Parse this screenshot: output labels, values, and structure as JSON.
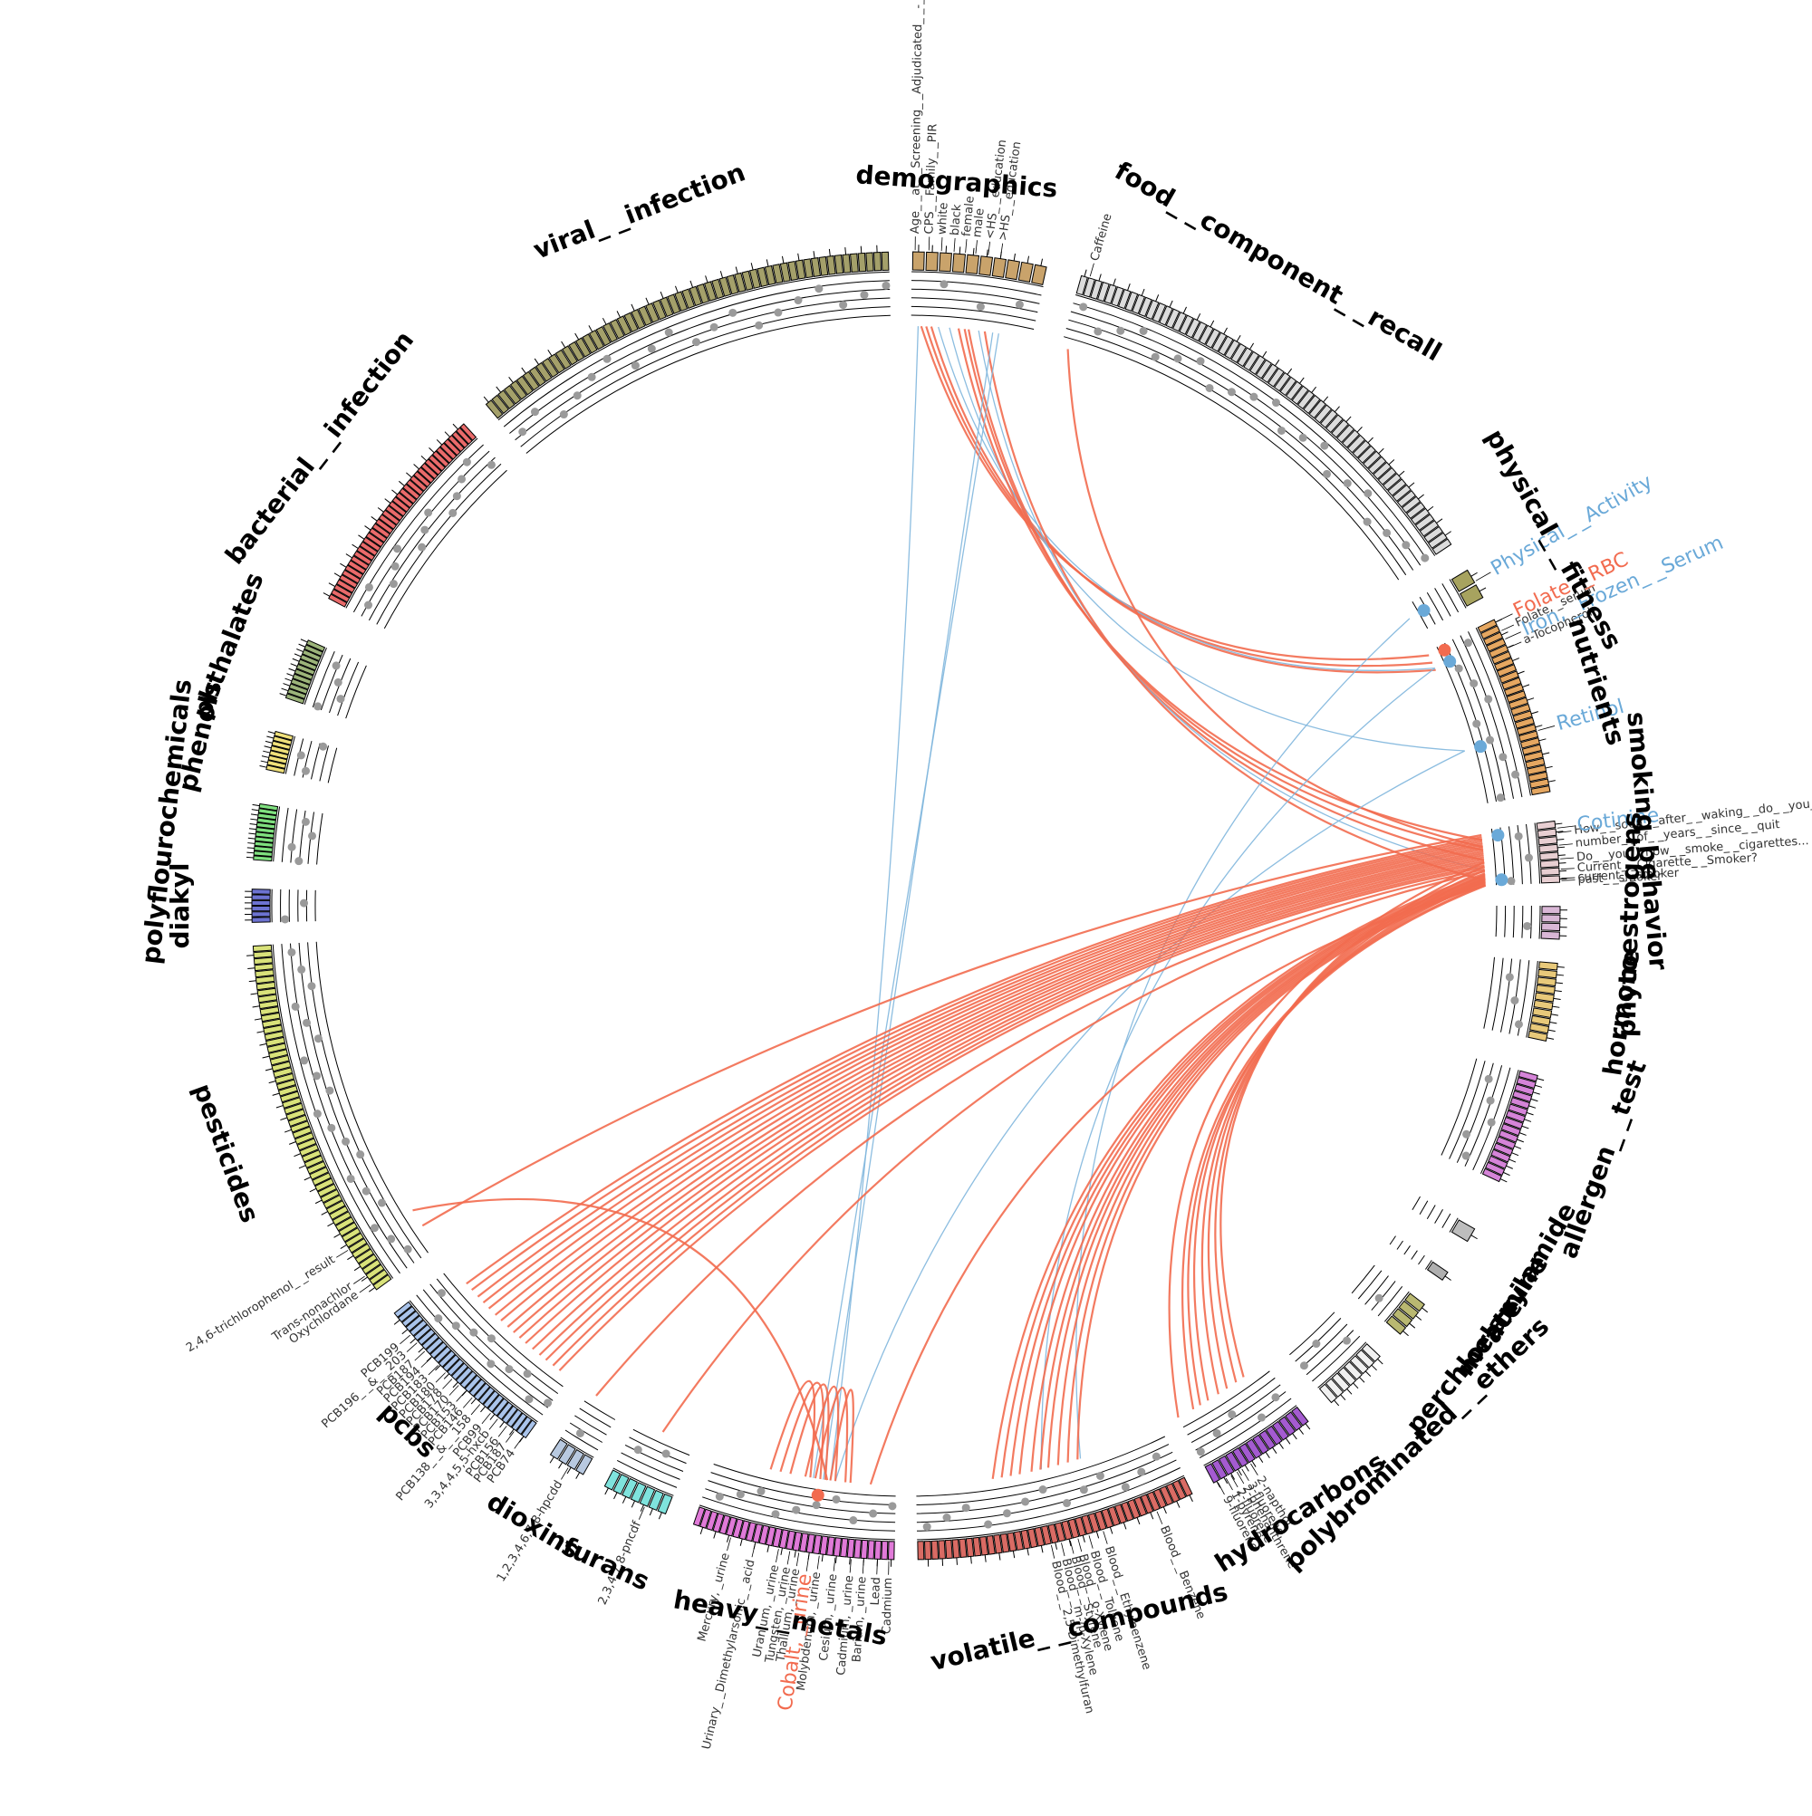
{
  "colors": {
    "link_positive": "#F26B4F",
    "link_negative": "#7FB6DD",
    "highlight_positive": "#F26B4F",
    "highlight_negative": "#6AA9D8",
    "dot": "#9A9A9A",
    "track_line": "#000000"
  },
  "categories": [
    {
      "key": "demographics",
      "label": "demographics",
      "bars": 10,
      "color": "#C9A36B",
      "a0": 0.5,
      "a1": 12.5
    },
    {
      "key": "food",
      "label": "food_ _component_ _recall",
      "bars": 62,
      "color": "#DCDCDC",
      "a0": 15.5,
      "a1": 56.5
    },
    {
      "key": "physical_fitness",
      "label": "physical_ _fitness",
      "bars": 2,
      "color": "#A7A35F",
      "a0": 59,
      "a1": 62
    },
    {
      "key": "nutrients",
      "label": "nutrients",
      "bars": 26,
      "color": "#E5A761",
      "a0": 64,
      "a1": 80
    },
    {
      "key": "smoking",
      "label": "smoking_behavior",
      "bars": 8,
      "color": "#E8CFD2",
      "a0": 82.5,
      "a1": 88
    },
    {
      "key": "phytoestrogens",
      "label": "phytoestrogens",
      "bars": 4,
      "color": "#D9B7D6",
      "a0": 90,
      "a1": 93
    },
    {
      "key": "hormone",
      "label": "hormone",
      "bars": 10,
      "color": "#E8C97A",
      "a0": 95,
      "a1": 102
    },
    {
      "key": "allergen",
      "label": "allergen_ _test",
      "bars": 16,
      "color": "#D584D8",
      "a0": 105,
      "a1": 115
    },
    {
      "key": "acrylamide",
      "label": "acrylamide",
      "bars": 1,
      "color": "#BDBDBD",
      "a0": 119.5,
      "a1": 121
    },
    {
      "key": "melamine",
      "label": "melamine",
      "bars": 1,
      "color": "#AFAFAF",
      "a0": 124,
      "a1": 125
    },
    {
      "key": "perchlorate",
      "label": "perchlorate",
      "bars": 4,
      "color": "#B9B871",
      "a0": 127.5,
      "a1": 131
    },
    {
      "key": "polybrominated",
      "label": "polybrominated_ _ethers",
      "bars": 8,
      "color": "#F0F0F0",
      "a0": 133.5,
      "a1": 139.5
    },
    {
      "key": "hydrocarbons",
      "label": "hydrocarbons",
      "bars": 14,
      "color": "#A45BD0",
      "a0": 142,
      "a1": 152
    },
    {
      "key": "volatile",
      "label": "volatile_ _compounds",
      "bars": 40,
      "color": "#D96B64",
      "a0": 154,
      "a1": 179
    },
    {
      "key": "heavy_metals",
      "label": "heavy_ _metals",
      "bars": 30,
      "color": "#E07AD8",
      "a0": 181,
      "a1": 199
    },
    {
      "key": "furans",
      "label": "furans",
      "bars": 7,
      "color": "#7FE3DD",
      "a0": 201.5,
      "a1": 207.5
    },
    {
      "key": "dioxins",
      "label": "dioxins",
      "bars": 4,
      "color": "#B8C9E0",
      "a0": 209.5,
      "a1": 213
    },
    {
      "key": "pcbs",
      "label": "pcbs",
      "bars": 30,
      "color": "#A9C3EA",
      "a0": 215.5,
      "a1": 231.5
    },
    {
      "key": "pesticides",
      "label": "pesticides",
      "bars": 58,
      "color": "#D9E27A",
      "a0": 234,
      "a1": 266.5
    },
    {
      "key": "diakyl",
      "label": "diakyl",
      "bars": 6,
      "color": "#6D73D1",
      "a0": 268.5,
      "a1": 271.5
    },
    {
      "key": "polyfluoro",
      "label": "polyflourochemicals",
      "bars": 12,
      "color": "#7FE07F",
      "a0": 274,
      "a1": 279
    },
    {
      "key": "phenols",
      "label": "phenols",
      "bars": 8,
      "color": "#EFE07A",
      "a0": 282,
      "a1": 285.5
    },
    {
      "key": "phthalates",
      "label": "phthalates",
      "bars": 12,
      "color": "#9CB47A",
      "a0": 288.5,
      "a1": 294
    },
    {
      "key": "bacterial",
      "label": "bacterial_ _infection",
      "bars": 40,
      "color": "#E96A6A",
      "a0": 298,
      "a1": 317.5
    },
    {
      "key": "viral",
      "label": "viral_ _infection",
      "bars": 56,
      "color": "#A4A06A",
      "a0": 320,
      "a1": 358.5
    }
  ],
  "category_label_angles": {
    "demographics": 4,
    "food": 30,
    "physical_fitness": 60.5,
    "nutrients": 72,
    "smoking": 85,
    "phytoestrogens": 91.5,
    "hormone": 98.5,
    "allergen": 110,
    "acrylamide": 120.5,
    "melamine": 124.5,
    "perchlorate": 129.5,
    "polybrominated": 136.5,
    "hydrocarbons": 147,
    "volatile": 166.5,
    "heavy_metals": 190,
    "furans": 204.5,
    "dioxins": 211,
    "pcbs": 223.5,
    "pesticides": 250,
    "diakyl": 270,
    "polyfluoro": 276.5,
    "phenols": 283.5,
    "phthalates": 291,
    "bacterial": 308,
    "viral": 339
  },
  "variable_labels": [
    {
      "text": "Age_ _at_ _Screening_ _Adjudicated_ _-_ _Recode",
      "a": 0.8
    },
    {
      "text": "CPS_ _Family_ _PIR",
      "a": 2
    },
    {
      "text": "white",
      "a": 3.1
    },
    {
      "text": "black",
      "a": 4.2
    },
    {
      "text": "female",
      "a": 5.2
    },
    {
      "text": "male",
      "a": 6.1
    },
    {
      "text": "<HS_ _education",
      "a": 7.2
    },
    {
      "text": ">HS_ _education",
      "a": 8.3
    },
    {
      "text": "Caffeine",
      "a": 16.3
    },
    {
      "text": "Folate, _serum",
      "a": 65.2
    },
    {
      "text": "a-Tocopherol",
      "a": 66.8
    },
    {
      "text": "How_ _soon_ _after_ _waking_ _do_ _you_ _smoke",
      "a": 83.6
    },
    {
      "text": "number_ _of_ _years_ _since_ _quit",
      "a": 84.7
    },
    {
      "text": "Do_ _you_ _now_ _smoke_ _cigarettes...",
      "a": 85.9
    },
    {
      "text": "Current_ _Cigarette_ _Smoker?",
      "a": 86.8
    },
    {
      "text": "past_ _smoker",
      "a": 87.8
    },
    {
      "text": "current_ _smoker",
      "a": 87.6
    },
    {
      "text": "2-napthol",
      "a": 148.3
    },
    {
      "text": "3-fluorene",
      "a": 149.2
    },
    {
      "text": "2-fluorene",
      "a": 150.3
    },
    {
      "text": "2-phenanthrene",
      "a": 149.7
    },
    {
      "text": "1-pyrene",
      "a": 150.8
    },
    {
      "text": "9-fluorene",
      "a": 151.6
    },
    {
      "text": "Blood_ _Benzene",
      "a": 157.5
    },
    {
      "text": "Blood_ _Toluene",
      "a": 163.8
    },
    {
      "text": "Blood_ _o-Xylene",
      "a": 164.8
    },
    {
      "text": "Blood_ _Styrene",
      "a": 165.5
    },
    {
      "text": "Blood_ _m-/p-Xylene",
      "a": 166.3
    },
    {
      "text": "Blood_ _2,5-Dimethylfuran",
      "a": 167.2
    },
    {
      "text": "Blood_ _Ethylbenzene",
      "a": 162.5
    },
    {
      "text": "Cadmium",
      "a": 181.5
    },
    {
      "text": "Lead",
      "a": 182.5
    },
    {
      "text": "Cadmium, _urine",
      "a": 184.8
    },
    {
      "text": "Barium, _urine",
      "a": 183.7
    },
    {
      "text": "Cesium, _urine",
      "a": 186.2
    },
    {
      "text": "Molybdenum, _urine",
      "a": 187.6
    },
    {
      "text": "Thallium, _urine",
      "a": 189.4
    },
    {
      "text": "Tungsten, _urine",
      "a": 190.2
    },
    {
      "text": "Uranium, _urine",
      "a": 191.2
    },
    {
      "text": "Urinary_ _Dimethylarsonic_ _acid",
      "a": 193.3
    },
    {
      "text": "Mercury, _urine",
      "a": 195.5
    },
    {
      "text": "2,3,4,7,8-pncdf",
      "a": 203.5
    },
    {
      "text": "1,2,3,4,6,7,8-hpcdd",
      "a": 211
    },
    {
      "text": "PCB74",
      "a": 215.8
    },
    {
      "text": "PCB187",
      "a": 216.7
    },
    {
      "text": "PCB156",
      "a": 217.5
    },
    {
      "text": "3,3,4,4,5,5-hxcb",
      "a": 218.5
    },
    {
      "text": "PCB99",
      "a": 219.3
    },
    {
      "text": "PCB138_ _&_ _158",
      "a": 220.5
    },
    {
      "text": "PCB146",
      "a": 221.4
    },
    {
      "text": "PCB153",
      "a": 222.2
    },
    {
      "text": "PCB170",
      "a": 223
    },
    {
      "text": "PCB178",
      "a": 223.8
    },
    {
      "text": "PCB180",
      "a": 224.6
    },
    {
      "text": "PCB183",
      "a": 225.5
    },
    {
      "text": "PCB194",
      "a": 226.4
    },
    {
      "text": "PCB187",
      "a": 227.2
    },
    {
      "text": "PCB196_ _&_ _203",
      "a": 228.2
    },
    {
      "text": "PCB199",
      "a": 229.1
    },
    {
      "text": "Oxychlordane",
      "a": 234.7
    },
    {
      "text": "Trans-nonachlor",
      "a": 235.6
    },
    {
      "text": "2,4,6-trichlorophenol_ _result",
      "a": 238.3
    }
  ],
  "highlight_labels": [
    {
      "text": "Physical_ _Activity",
      "a": 60.3,
      "sign": "neg"
    },
    {
      "text": "Folate, _RBC",
      "a": 64.3,
      "sign": "pos"
    },
    {
      "text": "Iron, _Frozen_ _Serum",
      "a": 66,
      "sign": "neg"
    },
    {
      "text": "Retinol",
      "a": 74.5,
      "sign": "neg"
    },
    {
      "text": "Cotinine",
      "a": 83.2,
      "sign": "neg"
    },
    {
      "text": "Cobalt, _urine",
      "a": 188.5,
      "sign": "pos"
    }
  ],
  "highlight_dots": [
    {
      "a": 60.3,
      "sign": "neg"
    },
    {
      "a": 64.6,
      "sign": "pos"
    },
    {
      "a": 65.8,
      "sign": "neg"
    },
    {
      "a": 74.5,
      "sign": "neg"
    },
    {
      "a": 83.2,
      "sign": "neg"
    },
    {
      "a": 87.5,
      "sign": "neg"
    },
    {
      "a": 188.5,
      "sign": "pos"
    }
  ],
  "links": [
    {
      "from": 1.2,
      "to": 187.5,
      "sign": "neg"
    },
    {
      "from": 1.5,
      "to": 64.4,
      "sign": "pos"
    },
    {
      "from": 2,
      "to": 65.2,
      "sign": "pos"
    },
    {
      "from": 2.5,
      "to": 66,
      "sign": "pos"
    },
    {
      "from": 3.2,
      "to": 65.8,
      "sign": "neg"
    },
    {
      "from": 4.3,
      "to": 74.5,
      "sign": "neg"
    },
    {
      "from": 5.2,
      "to": 83.5,
      "sign": "pos"
    },
    {
      "from": 5.8,
      "to": 84.5,
      "sign": "pos"
    },
    {
      "from": 6.2,
      "to": 85.5,
      "sign": "pos"
    },
    {
      "from": 7.2,
      "to": 86.5,
      "sign": "neg"
    },
    {
      "from": 7.8,
      "to": 87.5,
      "sign": "pos"
    },
    {
      "from": 8.6,
      "to": 188.2,
      "sign": "neg"
    },
    {
      "from": 9.2,
      "to": 189.2,
      "sign": "neg"
    },
    {
      "from": 16.2,
      "to": 84.2,
      "sign": "pos"
    },
    {
      "from": 60.3,
      "to": 162.5,
      "sign": "neg"
    },
    {
      "from": 65.8,
      "to": 166.5,
      "sign": "neg"
    },
    {
      "from": 74.5,
      "to": 187.0,
      "sign": "neg"
    },
    {
      "from": 83,
      "to": 236.5,
      "sign": "pos"
    },
    {
      "from": 83.2,
      "to": 229.3,
      "sign": "pos"
    },
    {
      "from": 83.4,
      "to": 228.5,
      "sign": "pos"
    },
    {
      "from": 83.6,
      "to": 227.6,
      "sign": "pos"
    },
    {
      "from": 83.8,
      "to": 226.8,
      "sign": "pos"
    },
    {
      "from": 84,
      "to": 226
    },
    {
      "from": 84.2,
      "to": 225.1,
      "sign": "pos"
    },
    {
      "from": 84.4,
      "to": 224.3,
      "sign": "pos"
    },
    {
      "from": 84.6,
      "to": 223.4,
      "sign": "pos"
    },
    {
      "from": 84.8,
      "to": 222.6,
      "sign": "pos"
    },
    {
      "from": 85,
      "to": 221.8,
      "sign": "pos"
    },
    {
      "from": 85.2,
      "to": 221,
      "sign": "pos"
    },
    {
      "from": 85.4,
      "to": 220.1,
      "sign": "pos"
    },
    {
      "from": 85.6,
      "to": 219.2,
      "sign": "pos"
    },
    {
      "from": 85.8,
      "to": 218.4,
      "sign": "pos"
    },
    {
      "from": 86,
      "to": 217.5,
      "sign": "pos"
    },
    {
      "from": 86.2,
      "to": 216.7,
      "sign": "pos"
    },
    {
      "from": 86.4,
      "to": 212.3,
      "sign": "pos"
    },
    {
      "from": 86.6,
      "to": 204.8,
      "sign": "pos"
    },
    {
      "from": 86.8,
      "to": 171.4,
      "sign": "pos"
    },
    {
      "from": 87,
      "to": 170.5,
      "sign": "pos"
    },
    {
      "from": 87.1,
      "to": 169.6,
      "sign": "pos"
    },
    {
      "from": 87.2,
      "to": 168.7,
      "sign": "pos"
    },
    {
      "from": 87.3,
      "to": 167.5,
      "sign": "pos"
    },
    {
      "from": 87.4,
      "to": 166.6,
      "sign": "pos"
    },
    {
      "from": 87.5,
      "to": 165.8,
      "sign": "pos"
    },
    {
      "from": 87.6,
      "to": 164.8,
      "sign": "pos"
    },
    {
      "from": 87.7,
      "to": 163.8,
      "sign": "pos"
    },
    {
      "from": 87.8,
      "to": 162.8,
      "sign": "pos"
    },
    {
      "from": 87.9,
      "to": 150.3,
      "sign": "pos"
    },
    {
      "from": 88,
      "to": 149.5,
      "sign": "pos"
    },
    {
      "from": 87.6,
      "to": 148.6,
      "sign": "pos"
    },
    {
      "from": 87.3,
      "to": 147.4,
      "sign": "pos"
    },
    {
      "from": 86.9,
      "to": 146.4,
      "sign": "pos"
    },
    {
      "from": 86.5,
      "to": 145.3,
      "sign": "pos"
    },
    {
      "from": 86.1,
      "to": 144.4,
      "sign": "pos"
    },
    {
      "from": 85.7,
      "to": 152,
      "sign": "pos"
    },
    {
      "from": 185.5,
      "to": 187.5,
      "sign": "pos"
    },
    {
      "from": 186,
      "to": 189,
      "sign": "pos"
    },
    {
      "from": 187,
      "to": 190,
      "sign": "pos"
    },
    {
      "from": 188,
      "to": 191.5,
      "sign": "pos"
    },
    {
      "from": 188.5,
      "to": 192.5,
      "sign": "pos"
    },
    {
      "from": 189.5,
      "to": 193.5,
      "sign": "pos"
    },
    {
      "from": 187.8,
      "to": 238.3,
      "sign": "pos"
    },
    {
      "from": 88,
      "to": 183.5,
      "sign": "pos"
    }
  ]
}
